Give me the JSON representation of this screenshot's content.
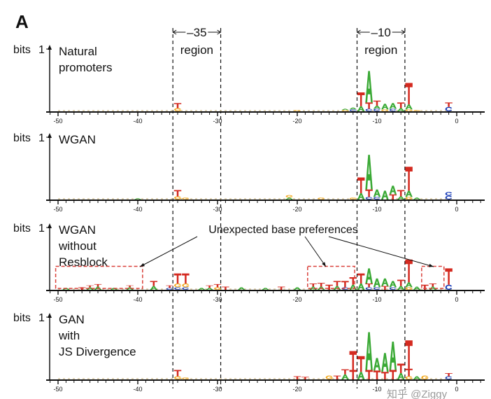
{
  "figure_letter": "A",
  "regions": [
    {
      "label_top": "–35",
      "label_bottom": "region",
      "from": -35.6,
      "to": -29.6
    },
    {
      "label_top": "–10",
      "label_bottom": "region",
      "from": -12.5,
      "to": -6.5
    }
  ],
  "y_axis_label": "bits",
  "y_tick": "1",
  "x_ticks": [
    -50,
    -40,
    -30,
    -20,
    -10,
    0
  ],
  "colors": {
    "A": "#3aa935",
    "C": "#1c3fb8",
    "G": "#f2a81d",
    "T": "#d42a20",
    "annotation": "#d9403a"
  },
  "panels": [
    {
      "title_lines": [
        "Natural",
        "promoters"
      ],
      "stacks": [
        [
          -35,
          [
            [
              "G",
              0.05
            ],
            [
              "T",
              0.08
            ]
          ]
        ],
        [
          -20,
          [
            [
              "G",
              0.02
            ]
          ]
        ],
        [
          -14,
          [
            [
              "G",
              0.02
            ],
            [
              "A",
              0.02
            ]
          ]
        ],
        [
          -13,
          [
            [
              "C",
              0.03
            ],
            [
              "A",
              0.03
            ]
          ]
        ],
        [
          -12,
          [
            [
              "A",
              0.08
            ],
            [
              "T",
              0.22
            ]
          ]
        ],
        [
          -11,
          [
            [
              "C",
              0.04
            ],
            [
              "T",
              0.1
            ],
            [
              "A",
              0.5
            ]
          ]
        ],
        [
          -10,
          [
            [
              "C",
              0.04
            ],
            [
              "A",
              0.05
            ],
            [
              "T",
              0.08
            ]
          ]
        ],
        [
          -9,
          [
            [
              "G",
              0.03
            ],
            [
              "A",
              0.09
            ]
          ]
        ],
        [
          -8,
          [
            [
              "C",
              0.04
            ],
            [
              "A",
              0.09
            ]
          ]
        ],
        [
          -7,
          [
            [
              "A",
              0.05
            ],
            [
              "T",
              0.09
            ]
          ]
        ],
        [
          -6,
          [
            [
              "G",
              0.03
            ],
            [
              "A",
              0.08
            ],
            [
              "T",
              0.34
            ]
          ]
        ],
        [
          -5,
          [
            [
              "G",
              0.02
            ]
          ]
        ],
        [
          -1,
          [
            [
              "C",
              0.07
            ],
            [
              "T",
              0.07
            ]
          ]
        ]
      ]
    },
    {
      "title_lines": [
        "WGAN"
      ],
      "stacks": [
        [
          -40,
          [
            [
              "A",
              0.02
            ]
          ]
        ],
        [
          -35,
          [
            [
              "G",
              0.05
            ],
            [
              "T",
              0.1
            ]
          ]
        ],
        [
          -34,
          [
            [
              "G",
              0.03
            ]
          ]
        ],
        [
          -21,
          [
            [
              "A",
              0.03
            ],
            [
              "G",
              0.04
            ]
          ]
        ],
        [
          -17,
          [
            [
              "G",
              0.03
            ]
          ]
        ],
        [
          -13,
          [
            [
              "G",
              0.03
            ]
          ]
        ],
        [
          -12,
          [
            [
              "A",
              0.1
            ],
            [
              "T",
              0.25
            ]
          ]
        ],
        [
          -11,
          [
            [
              "C",
              0.04
            ],
            [
              "T",
              0.12
            ],
            [
              "A",
              0.55
            ]
          ]
        ],
        [
          -10,
          [
            [
              "C",
              0.04
            ],
            [
              "A",
              0.12
            ]
          ]
        ],
        [
          -9,
          [
            [
              "A",
              0.14
            ]
          ]
        ],
        [
          -8,
          [
            [
              "T",
              0.08
            ],
            [
              "A",
              0.14
            ]
          ]
        ],
        [
          -7,
          [
            [
              "A",
              0.05
            ],
            [
              "T",
              0.1
            ]
          ]
        ],
        [
          -6,
          [
            [
              "G",
              0.04
            ],
            [
              "A",
              0.1
            ],
            [
              "T",
              0.38
            ]
          ]
        ],
        [
          -5,
          [
            [
              "A",
              0.03
            ]
          ]
        ],
        [
          -1,
          [
            [
              "C",
              0.06
            ],
            [
              "C",
              0.06
            ]
          ]
        ]
      ]
    },
    {
      "title_lines": [
        "WGAN",
        "without",
        "Resblock"
      ],
      "stacks": [
        [
          -49,
          [
            [
              "A",
              0.03
            ]
          ]
        ],
        [
          -47,
          [
            [
              "T",
              0.04
            ]
          ]
        ],
        [
          -46,
          [
            [
              "A",
              0.04
            ],
            [
              "T",
              0.03
            ]
          ]
        ],
        [
          -45,
          [
            [
              "A",
              0.05
            ],
            [
              "T",
              0.04
            ]
          ]
        ],
        [
          -43,
          [
            [
              "A",
              0.03
            ]
          ]
        ],
        [
          -41,
          [
            [
              "A",
              0.04
            ],
            [
              "T",
              0.03
            ]
          ]
        ],
        [
          -38,
          [
            [
              "A",
              0.06
            ],
            [
              "T",
              0.08
            ]
          ]
        ],
        [
          -36,
          [
            [
              "C",
              0.03
            ],
            [
              "T",
              0.04
            ]
          ]
        ],
        [
          -35,
          [
            [
              "C",
              0.04
            ],
            [
              "G",
              0.06
            ],
            [
              "T",
              0.16
            ]
          ]
        ],
        [
          -34,
          [
            [
              "C",
              0.04
            ],
            [
              "G",
              0.06
            ],
            [
              "T",
              0.16
            ]
          ]
        ],
        [
          -32,
          [
            [
              "A",
              0.03
            ]
          ]
        ],
        [
          -31,
          [
            [
              "A",
              0.03
            ],
            [
              "T",
              0.04
            ]
          ]
        ],
        [
          -30,
          [
            [
              "G",
              0.04
            ],
            [
              "T",
              0.05
            ]
          ]
        ],
        [
          -29,
          [
            [
              "T",
              0.05
            ]
          ]
        ],
        [
          -27,
          [
            [
              "A",
              0.04
            ]
          ]
        ],
        [
          -24,
          [
            [
              "A",
              0.03
            ]
          ]
        ],
        [
          -22,
          [
            [
              "T",
              0.05
            ]
          ]
        ],
        [
          -20,
          [
            [
              "A",
              0.04
            ]
          ]
        ],
        [
          -18,
          [
            [
              "A",
              0.05
            ],
            [
              "T",
              0.05
            ]
          ]
        ],
        [
          -17,
          [
            [
              "A",
              0.05
            ],
            [
              "T",
              0.06
            ]
          ]
        ],
        [
          -16,
          [
            [
              "T",
              0.08
            ]
          ]
        ],
        [
          -15,
          [
            [
              "A",
              0.06
            ],
            [
              "T",
              0.08
            ]
          ]
        ],
        [
          -14,
          [
            [
              "C",
              0.04
            ],
            [
              "T",
              0.1
            ]
          ]
        ],
        [
          -13,
          [
            [
              "A",
              0.08
            ],
            [
              "T",
              0.12
            ]
          ]
        ],
        [
          -12,
          [
            [
              "A",
              0.1
            ],
            [
              "T",
              0.16
            ]
          ]
        ],
        [
          -11,
          [
            [
              "C",
              0.04
            ],
            [
              "T",
              0.06
            ],
            [
              "A",
              0.24
            ]
          ]
        ],
        [
          -10,
          [
            [
              "C",
              0.04
            ],
            [
              "A",
              0.14
            ]
          ]
        ],
        [
          -9,
          [
            [
              "T",
              0.06
            ],
            [
              "A",
              0.12
            ]
          ]
        ],
        [
          -8,
          [
            [
              "C",
              0.04
            ],
            [
              "A",
              0.1
            ]
          ]
        ],
        [
          -7,
          [
            [
              "A",
              0.06
            ],
            [
              "T",
              0.1
            ]
          ]
        ],
        [
          -6,
          [
            [
              "G",
              0.04
            ],
            [
              "A",
              0.08
            ],
            [
              "T",
              0.36
            ]
          ]
        ],
        [
          -5,
          [
            [
              "A",
              0.05
            ]
          ]
        ],
        [
          -4,
          [
            [
              "T",
              0.08
            ]
          ]
        ],
        [
          -3,
          [
            [
              "A",
              0.05
            ],
            [
              "T",
              0.05
            ]
          ]
        ],
        [
          -1,
          [
            [
              "C",
              0.08
            ],
            [
              "T",
              0.26
            ]
          ]
        ]
      ]
    },
    {
      "title_lines": [
        "GAN",
        "with",
        "JS Divergence"
      ],
      "stacks": [
        [
          -35,
          [
            [
              "G",
              0.05
            ],
            [
              "T",
              0.1
            ]
          ]
        ],
        [
          -34,
          [
            [
              "G",
              0.03
            ]
          ]
        ],
        [
          -20,
          [
            [
              "T",
              0.05
            ]
          ]
        ],
        [
          -19,
          [
            [
              "T",
              0.04
            ]
          ]
        ],
        [
          -16,
          [
            [
              "G",
              0.06
            ]
          ]
        ],
        [
          -15,
          [
            [
              "T",
              0.06
            ]
          ]
        ],
        [
          -14,
          [
            [
              "A",
              0.08
            ],
            [
              "T",
              0.08
            ]
          ]
        ],
        [
          -13,
          [
            [
              "T",
              0.15
            ],
            [
              "T",
              0.3
            ]
          ]
        ],
        [
          -12,
          [
            [
              "A",
              0.12
            ],
            [
              "T",
              0.25
            ]
          ]
        ],
        [
          -11,
          [
            [
              "T",
              0.15
            ],
            [
              "A",
              0.6
            ]
          ]
        ],
        [
          -10,
          [
            [
              "T",
              0.14
            ],
            [
              "A",
              0.2
            ]
          ]
        ],
        [
          -9,
          [
            [
              "T",
              0.12
            ],
            [
              "A",
              0.3
            ]
          ]
        ],
        [
          -8,
          [
            [
              "T",
              0.15
            ],
            [
              "A",
              0.45
            ]
          ]
        ],
        [
          -7,
          [
            [
              "A",
              0.1
            ],
            [
              "T",
              0.15
            ]
          ]
        ],
        [
          -6,
          [
            [
              "G",
              0.05
            ],
            [
              "T",
              0.12
            ],
            [
              "T",
              0.45
            ]
          ]
        ],
        [
          -5,
          [
            [
              "A",
              0.05
            ]
          ]
        ],
        [
          -4,
          [
            [
              "G",
              0.06
            ]
          ]
        ],
        [
          -1,
          [
            [
              "C",
              0.05
            ],
            [
              "T",
              0.05
            ]
          ]
        ]
      ]
    }
  ],
  "annotation": {
    "text": "Unexpected base preferences",
    "boxes": [
      [
        -50.3,
        -39.4,
        0.35
      ],
      [
        -18.7,
        -12.8,
        0.35
      ],
      [
        -4.4,
        -1.6,
        0.35
      ]
    ]
  },
  "watermark": "知乎 @Ziggy"
}
